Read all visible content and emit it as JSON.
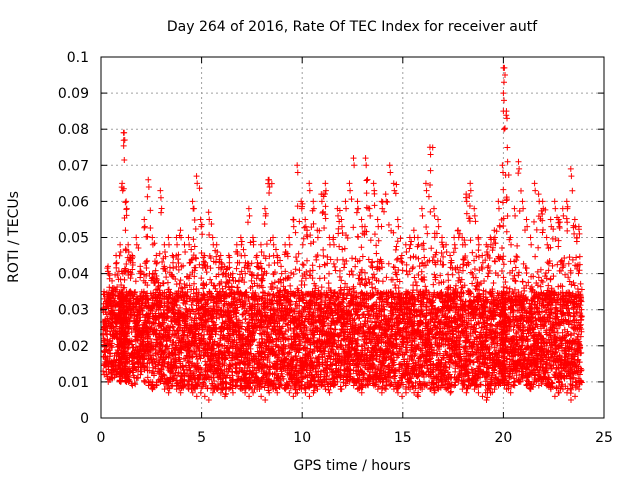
{
  "chart_data": {
    "type": "scatter",
    "title": "Day 264 of 2016, Rate Of TEC Index for receiver autf",
    "xlabel": "GPS time / hours",
    "ylabel": "ROTI / TECUs",
    "xlim": [
      0,
      25
    ],
    "ylim": [
      0,
      0.1
    ],
    "xticks": [
      "0",
      "5",
      "10",
      "15",
      "20",
      "25"
    ],
    "yticks": [
      "0",
      "0.01",
      "0.02",
      "0.03",
      "0.04",
      "0.05",
      "0.06",
      "0.07",
      "0.08",
      "0.09",
      "0.1"
    ],
    "grid": true,
    "marker": "plus",
    "color": "#ff0000",
    "series": [
      {
        "name": "ROTI",
        "x": [
          0.1,
          0.3,
          0.5,
          0.7,
          0.9,
          1.0,
          1.1,
          1.2,
          1.3,
          1.5,
          1.7,
          1.9,
          2.1,
          2.3,
          2.5,
          2.7,
          2.9,
          3.1,
          3.3,
          3.5,
          3.7,
          3.9,
          4.1,
          4.3,
          4.5,
          4.7,
          4.9,
          5.1,
          5.3,
          5.5,
          5.7,
          5.9,
          6.1,
          6.3,
          6.5,
          6.7,
          6.9,
          7.1,
          7.3,
          7.5,
          7.7,
          7.9,
          8.1,
          8.3,
          8.5,
          8.7,
          8.9,
          9.1,
          9.3,
          9.5,
          9.7,
          9.9,
          10.1,
          10.3,
          10.5,
          10.7,
          10.9,
          11.1,
          11.3,
          11.5,
          11.7,
          11.9,
          12.1,
          12.3,
          12.5,
          12.7,
          12.9,
          13.1,
          13.3,
          13.5,
          13.7,
          13.9,
          14.1,
          14.3,
          14.5,
          14.7,
          14.9,
          15.1,
          15.3,
          15.5,
          15.7,
          15.9,
          16.1,
          16.3,
          16.5,
          16.7,
          16.9,
          17.1,
          17.3,
          17.5,
          17.7,
          17.9,
          18.1,
          18.3,
          18.5,
          18.7,
          18.9,
          19.1,
          19.3,
          19.5,
          19.7,
          19.9,
          20.0,
          20.1,
          20.3,
          20.5,
          20.7,
          20.9,
          21.1,
          21.3,
          21.5,
          21.7,
          21.9,
          22.1,
          22.3,
          22.5,
          22.7,
          22.9,
          23.1,
          23.3,
          23.5,
          23.7
        ],
        "high": [
          0.035,
          0.042,
          0.038,
          0.045,
          0.048,
          0.065,
          0.079,
          0.06,
          0.048,
          0.045,
          0.05,
          0.042,
          0.055,
          0.066,
          0.05,
          0.045,
          0.063,
          0.048,
          0.05,
          0.045,
          0.05,
          0.052,
          0.048,
          0.05,
          0.06,
          0.067,
          0.055,
          0.045,
          0.057,
          0.05,
          0.048,
          0.045,
          0.042,
          0.045,
          0.04,
          0.048,
          0.05,
          0.045,
          0.058,
          0.05,
          0.045,
          0.048,
          0.058,
          0.066,
          0.05,
          0.045,
          0.042,
          0.048,
          0.05,
          0.055,
          0.07,
          0.06,
          0.055,
          0.065,
          0.06,
          0.052,
          0.062,
          0.065,
          0.05,
          0.05,
          0.058,
          0.055,
          0.06,
          0.065,
          0.072,
          0.06,
          0.055,
          0.072,
          0.058,
          0.065,
          0.055,
          0.06,
          0.062,
          0.07,
          0.065,
          0.055,
          0.045,
          0.048,
          0.05,
          0.052,
          0.05,
          0.058,
          0.065,
          0.075,
          0.058,
          0.055,
          0.05,
          0.048,
          0.045,
          0.05,
          0.052,
          0.05,
          0.062,
          0.065,
          0.058,
          0.05,
          0.045,
          0.048,
          0.05,
          0.052,
          0.06,
          0.07,
          0.097,
          0.085,
          0.05,
          0.058,
          0.071,
          0.06,
          0.055,
          0.05,
          0.065,
          0.062,
          0.06,
          0.05,
          0.055,
          0.06,
          0.055,
          0.058,
          0.06,
          0.069,
          0.055,
          0.053
        ],
        "low": [
          0.012,
          0.01,
          0.011,
          0.012,
          0.01,
          0.011,
          0.012,
          0.01,
          0.01,
          0.009,
          0.011,
          0.012,
          0.01,
          0.009,
          0.008,
          0.009,
          0.01,
          0.008,
          0.007,
          0.009,
          0.008,
          0.007,
          0.009,
          0.008,
          0.007,
          0.006,
          0.007,
          0.006,
          0.005,
          0.007,
          0.008,
          0.007,
          0.006,
          0.008,
          0.007,
          0.009,
          0.008,
          0.007,
          0.006,
          0.007,
          0.008,
          0.006,
          0.005,
          0.007,
          0.008,
          0.007,
          0.009,
          0.008,
          0.007,
          0.006,
          0.007,
          0.008,
          0.007,
          0.006,
          0.007,
          0.008,
          0.009,
          0.008,
          0.007,
          0.009,
          0.01,
          0.008,
          0.009,
          0.01,
          0.009,
          0.008,
          0.007,
          0.009,
          0.01,
          0.009,
          0.008,
          0.007,
          0.008,
          0.009,
          0.008,
          0.007,
          0.006,
          0.007,
          0.008,
          0.007,
          0.006,
          0.008,
          0.009,
          0.008,
          0.007,
          0.008,
          0.009,
          0.008,
          0.007,
          0.009,
          0.01,
          0.008,
          0.007,
          0.009,
          0.008,
          0.007,
          0.006,
          0.005,
          0.007,
          0.008,
          0.009,
          0.01,
          0.009,
          0.008,
          0.007,
          0.009,
          0.01,
          0.011,
          0.009,
          0.008,
          0.01,
          0.009,
          0.01,
          0.009,
          0.008,
          0.006,
          0.007,
          0.008,
          0.007,
          0.005,
          0.006,
          0.008
        ],
        "typical_range": [
          0.012,
          0.035
        ],
        "peak": {
          "x": 20.0,
          "y": 0.097
        }
      }
    ]
  }
}
